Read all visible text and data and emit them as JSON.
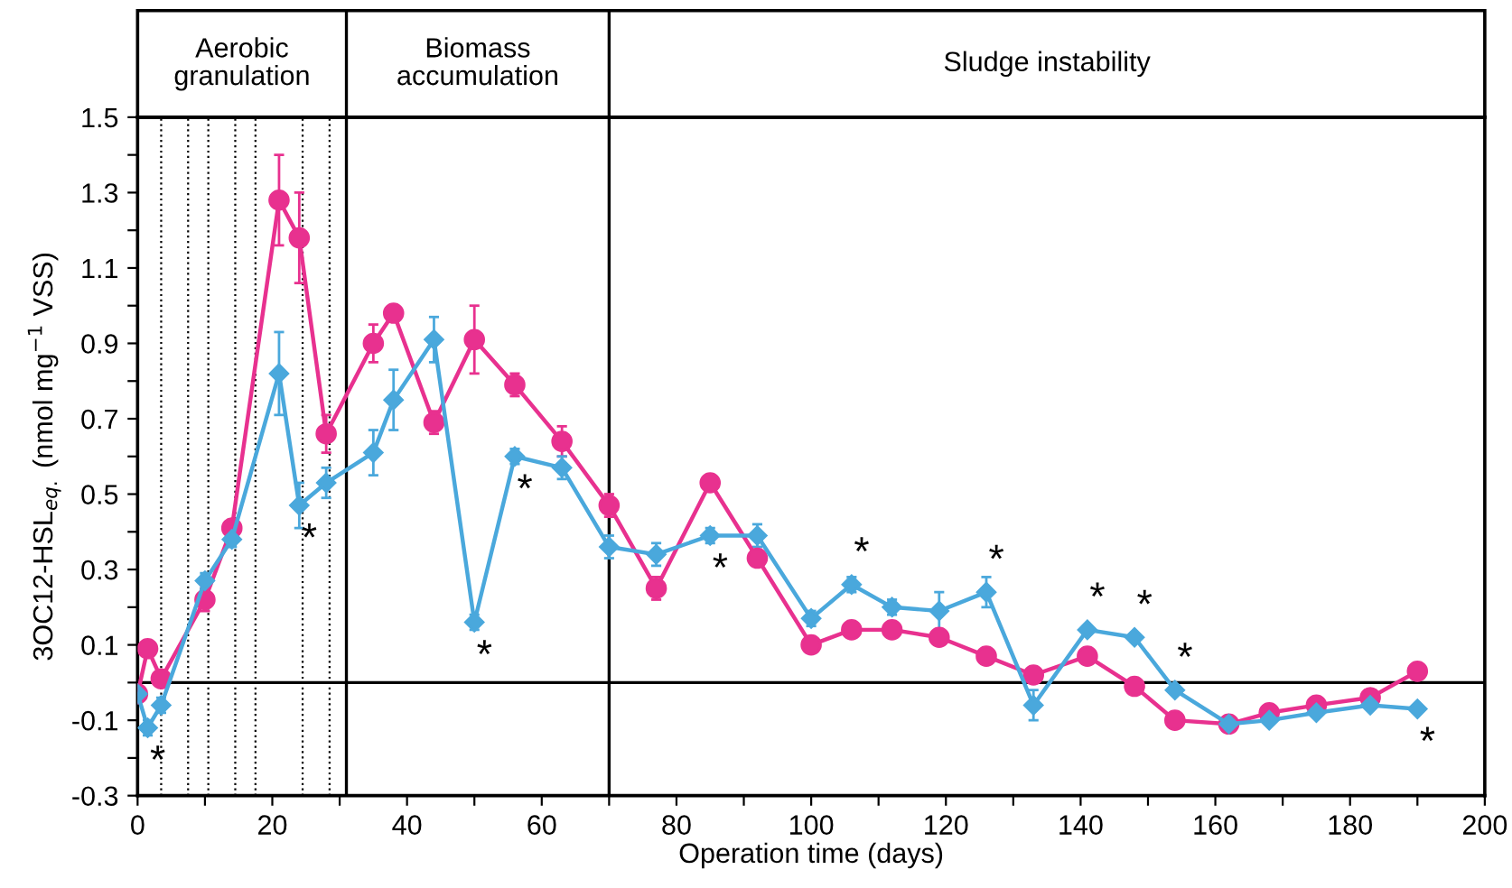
{
  "chart_data": {
    "type": "line",
    "xlabel": "Operation time (days)",
    "ylabel": "3OC12-HSL$_{eq.}$ (nmol mg$^{−1}$ VSS)",
    "xlim": [
      0,
      200
    ],
    "xticks": [
      0,
      {
        "value": 10,
        "label": null
      },
      20,
      {
        "value": 30,
        "label": null
      },
      40,
      {
        "value": 50,
        "label": null
      },
      60,
      {
        "value": 70,
        "label": null
      },
      80,
      {
        "value": 90,
        "label": null
      },
      100,
      {
        "value": 110,
        "label": null
      },
      120,
      {
        "value": 130,
        "label": null
      },
      140,
      {
        "value": 150,
        "label": null
      },
      160,
      {
        "value": 170,
        "label": null
      },
      180,
      {
        "value": 190,
        "label": null
      },
      200
    ],
    "ylim": [
      -0.3,
      1.5
    ],
    "yticks": [
      -0.3,
      {
        "value": -0.2,
        "label": null
      },
      -0.1,
      {
        "value": 0,
        "label": null
      },
      0.1,
      {
        "value": 0.2,
        "label": null
      },
      0.3,
      {
        "value": 0.4,
        "label": null
      },
      0.5,
      {
        "value": 0.6,
        "label": null
      },
      0.7,
      {
        "value": 0.8,
        "label": null
      },
      0.9,
      {
        "value": 1.0,
        "label": null
      },
      1.1,
      {
        "value": 1.2,
        "label": null
      },
      1.3,
      {
        "value": 1.4,
        "label": null
      },
      1.5
    ],
    "grid": false,
    "legend": false,
    "line_style": "solid",
    "series": [
      {
        "color": "#e8318f",
        "marker": "circle",
        "x": [
          0,
          1.5,
          3.5,
          10,
          14,
          21,
          24,
          28,
          35,
          38,
          44,
          50,
          56,
          63,
          70,
          77,
          85,
          92,
          100,
          106,
          112,
          119,
          126,
          133,
          141,
          148,
          154,
          162,
          168,
          175,
          183,
          190
        ],
        "values": [
          -0.03,
          0.09,
          0.01,
          0.22,
          0.41,
          1.28,
          1.18,
          0.66,
          0.9,
          0.98,
          0.69,
          0.91,
          0.79,
          0.64,
          0.47,
          0.25,
          0.53,
          0.33,
          0.1,
          0.14,
          0.14,
          0.12,
          0.07,
          0.02,
          0.07,
          -0.01,
          -0.1,
          -0.11,
          -0.08,
          -0.06,
          -0.04,
          0.03
        ],
        "errors": [
          null,
          0.02,
          null,
          0.03,
          0.02,
          0.12,
          0.12,
          0.05,
          0.05,
          0.02,
          0.03,
          0.09,
          0.03,
          0.04,
          0.03,
          0.03,
          null,
          0.02,
          null,
          0.02,
          null,
          null,
          null,
          null,
          null,
          null,
          null,
          0.02,
          null,
          null,
          null,
          null
        ]
      },
      {
        "color": "#4aa8dc",
        "marker": "diamond",
        "x": [
          0,
          1.5,
          3.5,
          10,
          14,
          21,
          24,
          28,
          35,
          38,
          44,
          50,
          56,
          63,
          70,
          77,
          85,
          92,
          100,
          106,
          112,
          119,
          126,
          133,
          141,
          148,
          154,
          162,
          168,
          175,
          183,
          190
        ],
        "values": [
          -0.03,
          -0.12,
          -0.06,
          0.27,
          0.38,
          0.82,
          0.47,
          0.53,
          0.61,
          0.75,
          0.91,
          0.16,
          0.6,
          0.57,
          0.36,
          0.34,
          0.39,
          0.39,
          0.17,
          0.26,
          0.2,
          0.19,
          0.24,
          -0.06,
          0.14,
          0.12,
          -0.02,
          -0.11,
          -0.1,
          -0.08,
          -0.06,
          -0.07
        ],
        "errors": [
          null,
          0.02,
          0.02,
          0.02,
          0.02,
          0.11,
          0.06,
          0.04,
          0.06,
          0.08,
          0.06,
          0.02,
          0.02,
          0.03,
          0.03,
          0.03,
          0.02,
          0.03,
          0.02,
          0.02,
          0.02,
          0.05,
          0.04,
          0.04,
          null,
          null,
          null,
          null,
          null,
          null,
          null,
          null
        ]
      }
    ],
    "ref_lines": [
      {
        "axis": "y",
        "value": 0,
        "color": "#000000",
        "line_style": "solid"
      },
      {
        "axis": "x",
        "value": 31,
        "color": "#000000",
        "line_style": "solid"
      },
      {
        "axis": "x",
        "value": 70,
        "color": "#000000",
        "line_style": "solid"
      },
      {
        "axis": "x",
        "value": 3.5,
        "color": "#000000",
        "line_style": "dotted"
      },
      {
        "axis": "x",
        "value": 7.5,
        "color": "#000000",
        "line_style": "dotted"
      },
      {
        "axis": "x",
        "value": 10.5,
        "color": "#000000",
        "line_style": "dotted"
      },
      {
        "axis": "x",
        "value": 14.5,
        "color": "#000000",
        "line_style": "dotted"
      },
      {
        "axis": "x",
        "value": 17.5,
        "color": "#000000",
        "line_style": "dotted"
      },
      {
        "axis": "x",
        "value": 24.5,
        "color": "#000000",
        "line_style": "dotted"
      },
      {
        "axis": "x",
        "value": 28.5,
        "color": "#000000",
        "line_style": "dotted"
      }
    ],
    "annotations": [
      "Aerobic\ngranulation",
      "Biomass\naccumulation",
      "Sludge instability",
      {
        "text": "*",
        "x": 1.5,
        "y": -0.12
      },
      {
        "text": "*",
        "x": 24,
        "y": 0.47
      },
      {
        "text": "*",
        "x": 50,
        "y": 0.16
      },
      {
        "text": "*",
        "x": 56,
        "y": 0.6
      },
      {
        "text": "*",
        "x": 85,
        "y": 0.39
      },
      {
        "text": "*",
        "x": 106,
        "y": 0.26
      },
      {
        "text": "*",
        "x": 126,
        "y": 0.24
      },
      {
        "text": "*",
        "x": 141,
        "y": 0.14
      },
      {
        "text": "*",
        "x": 148,
        "y": 0.12
      },
      {
        "text": "*",
        "x": 154,
        "y": -0.02
      },
      {
        "text": "*",
        "x": 190,
        "y": -0.07
      }
    ]
  }
}
